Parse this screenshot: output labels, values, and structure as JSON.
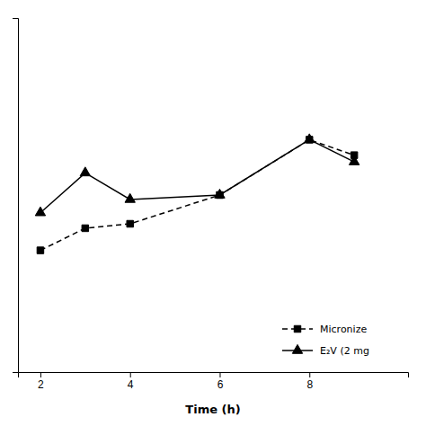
{
  "chart_data": {
    "type": "line",
    "x_label": "Time (h)",
    "x": [
      2,
      3,
      4,
      6,
      8,
      9
    ],
    "series": [
      {
        "name": "Micronize",
        "color": "#000000",
        "marker": "square",
        "line_style": "dashed",
        "values": [
          55,
          65,
          67,
          80,
          105,
          98
        ]
      },
      {
        "name": "E₂V (2 mg",
        "color": "#000000",
        "marker": "triangle",
        "line_style": "solid",
        "values": [
          72,
          90,
          78,
          80,
          105,
          95
        ]
      }
    ],
    "xlim": [
      1.5,
      10.2
    ],
    "xticks": [
      2,
      4,
      6,
      8
    ],
    "ylim": [
      0,
      160
    ],
    "yticks": [],
    "tick_labels": "x",
    "grid": false,
    "legend": "lower right"
  }
}
